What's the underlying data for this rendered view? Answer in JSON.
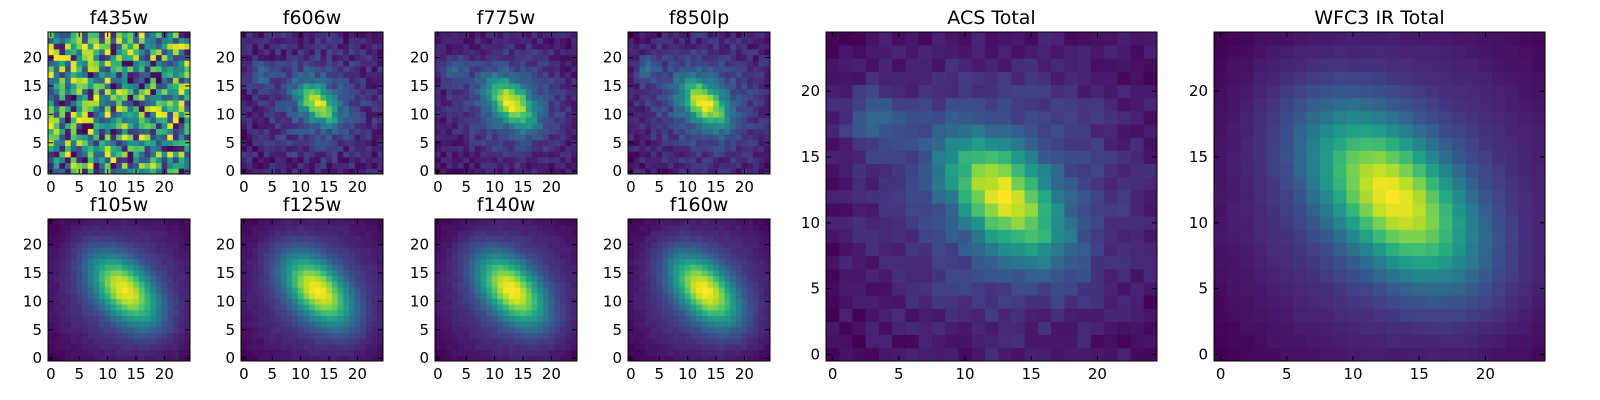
{
  "figure": {
    "colormap": "viridis",
    "background": "#ffffff"
  },
  "chart_data": [
    {
      "type": "heatmap",
      "title": "f435w",
      "xticks": [
        0,
        5,
        10,
        15,
        20
      ],
      "yticks": [
        0,
        5,
        10,
        15,
        20
      ],
      "xlim": [
        -0.5,
        24.5
      ],
      "ylim": [
        -0.5,
        24.5
      ],
      "grid_size": [
        25,
        25
      ],
      "source": {
        "pattern": "noise",
        "center": [
          12,
          12
        ],
        "spread": 0,
        "noise": 1.0,
        "seed": 11
      }
    },
    {
      "type": "heatmap",
      "title": "f606w",
      "xticks": [
        0,
        5,
        10,
        15,
        20
      ],
      "yticks": [
        0,
        5,
        10,
        15,
        20
      ],
      "xlim": [
        -0.5,
        24.5
      ],
      "ylim": [
        -0.5,
        24.5
      ],
      "grid_size": [
        25,
        25
      ],
      "source": {
        "pattern": "galaxy",
        "center": [
          13,
          12
        ],
        "spread": 2.2,
        "noise": 0.3,
        "secondary": [
          3,
          17
        ],
        "seed": 23
      }
    },
    {
      "type": "heatmap",
      "title": "f775w",
      "xticks": [
        0,
        5,
        10,
        15,
        20
      ],
      "yticks": [
        0,
        5,
        10,
        15,
        20
      ],
      "xlim": [
        -0.5,
        24.5
      ],
      "ylim": [
        -0.5,
        24.5
      ],
      "grid_size": [
        25,
        25
      ],
      "source": {
        "pattern": "galaxy",
        "center": [
          13,
          12
        ],
        "spread": 2.6,
        "noise": 0.2,
        "secondary": [
          3,
          18
        ],
        "seed": 37
      }
    },
    {
      "type": "heatmap",
      "title": "f850lp",
      "xticks": [
        0,
        5,
        10,
        15,
        20
      ],
      "yticks": [
        0,
        5,
        10,
        15,
        20
      ],
      "xlim": [
        -0.5,
        24.5
      ],
      "ylim": [
        -0.5,
        24.5
      ],
      "grid_size": [
        25,
        25
      ],
      "source": {
        "pattern": "galaxy",
        "center": [
          13,
          12
        ],
        "spread": 2.6,
        "noise": 0.22,
        "secondary": [
          3,
          18
        ],
        "seed": 41
      }
    },
    {
      "type": "heatmap",
      "title": "f105w",
      "xticks": [
        0,
        5,
        10,
        15,
        20
      ],
      "yticks": [
        0,
        5,
        10,
        15,
        20
      ],
      "xlim": [
        -0.5,
        24.5
      ],
      "ylim": [
        -0.5,
        24.5
      ],
      "grid_size": [
        25,
        25
      ],
      "source": {
        "pattern": "galaxy",
        "center": [
          13,
          12
        ],
        "spread": 3.8,
        "noise": 0.04,
        "seed": 53
      }
    },
    {
      "type": "heatmap",
      "title": "f125w",
      "xticks": [
        0,
        5,
        10,
        15,
        20
      ],
      "yticks": [
        0,
        5,
        10,
        15,
        20
      ],
      "xlim": [
        -0.5,
        24.5
      ],
      "ylim": [
        -0.5,
        24.5
      ],
      "grid_size": [
        25,
        25
      ],
      "source": {
        "pattern": "galaxy",
        "center": [
          13,
          12
        ],
        "spread": 3.8,
        "noise": 0.04,
        "seed": 59
      }
    },
    {
      "type": "heatmap",
      "title": "f140w",
      "xticks": [
        0,
        5,
        10,
        15,
        20
      ],
      "yticks": [
        0,
        5,
        10,
        15,
        20
      ],
      "xlim": [
        -0.5,
        24.5
      ],
      "ylim": [
        -0.5,
        24.5
      ],
      "grid_size": [
        25,
        25
      ],
      "source": {
        "pattern": "galaxy",
        "center": [
          13,
          12
        ],
        "spread": 3.8,
        "noise": 0.04,
        "seed": 61
      }
    },
    {
      "type": "heatmap",
      "title": "f160w",
      "xticks": [
        0,
        5,
        10,
        15,
        20
      ],
      "yticks": [
        0,
        5,
        10,
        15,
        20
      ],
      "xlim": [
        -0.5,
        24.5
      ],
      "ylim": [
        -0.5,
        24.5
      ],
      "grid_size": [
        25,
        25
      ],
      "source": {
        "pattern": "galaxy",
        "center": [
          13,
          12
        ],
        "spread": 3.8,
        "noise": 0.04,
        "seed": 67
      }
    },
    {
      "type": "heatmap",
      "title": "ACS Total",
      "xticks": [
        0,
        5,
        10,
        15,
        20
      ],
      "yticks": [
        0,
        5,
        10,
        15,
        20
      ],
      "xlim": [
        -0.5,
        24.5
      ],
      "ylim": [
        -0.5,
        24.5
      ],
      "grid_size": [
        25,
        25
      ],
      "source": {
        "pattern": "galaxy",
        "center": [
          13,
          12
        ],
        "spread": 2.8,
        "noise": 0.14,
        "secondary": [
          3,
          18
        ],
        "seed": 71
      }
    },
    {
      "type": "heatmap",
      "title": "WFC3 IR Total",
      "xticks": [
        0,
        5,
        10,
        15,
        20
      ],
      "yticks": [
        0,
        5,
        10,
        15,
        20
      ],
      "xlim": [
        -0.5,
        24.5
      ],
      "ylim": [
        -0.5,
        24.5
      ],
      "grid_size": [
        25,
        25
      ],
      "source": {
        "pattern": "galaxy",
        "center": [
          13,
          12
        ],
        "spread": 3.9,
        "noise": 0.02,
        "seed": 79
      }
    }
  ]
}
